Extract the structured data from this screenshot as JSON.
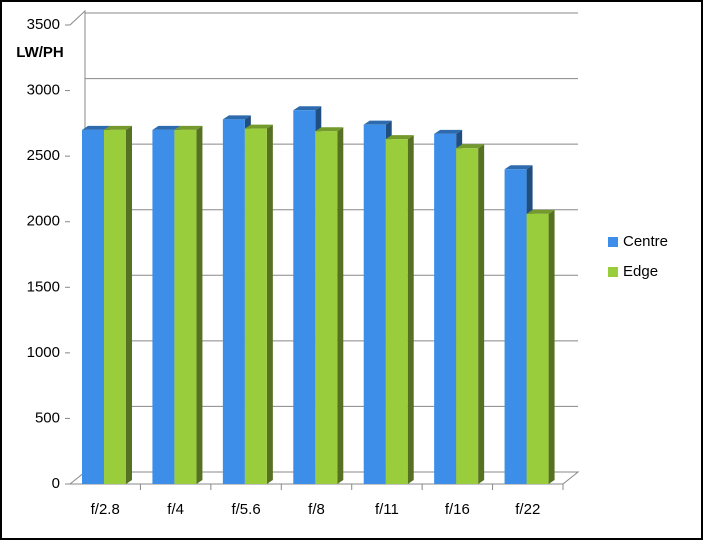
{
  "chart_data": {
    "type": "bar3d",
    "y_label": "LW/PH",
    "categories": [
      "f/2.8",
      "f/4",
      "f/5.6",
      "f/8",
      "f/11",
      "f/16",
      "f/22"
    ],
    "series": [
      {
        "name": "Centre",
        "color": "#3c8ee8",
        "values": [
          2700,
          2700,
          2780,
          2850,
          2740,
          2670,
          2400
        ]
      },
      {
        "name": "Edge",
        "color": "#9acd3c",
        "values": [
          2700,
          2700,
          2710,
          2690,
          2630,
          2560,
          2060
        ]
      }
    ],
    "ylim": [
      0,
      3500
    ],
    "yticks": [
      0,
      500,
      1000,
      1500,
      2000,
      2500,
      3000,
      3500
    ],
    "grid": true,
    "legend": "right"
  }
}
